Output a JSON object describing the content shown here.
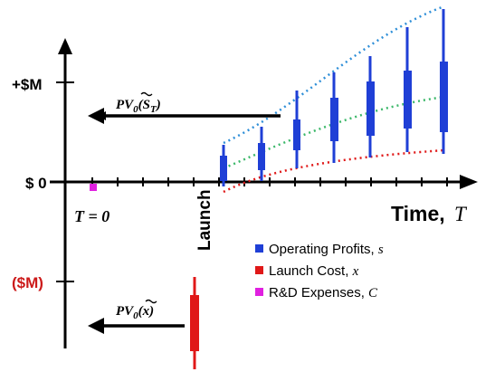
{
  "axes": {
    "y_top_label": "+$M",
    "y_zero_label": "$ 0",
    "y_neg_label": "($M)",
    "x_title": "Time,",
    "x_title_var": "T",
    "t0_label": "T = 0",
    "launch_label": "Launch"
  },
  "annotations": {
    "pv_s_main": "PV",
    "pv_s_sub": "0",
    "pv_s_arg": "(S",
    "pv_s_arg_sub": "T",
    "pv_s_close": ")",
    "pv_x_main": "PV",
    "pv_x_sub": "0",
    "pv_x_arg": "(x)"
  },
  "legend": [
    {
      "label": "Operating Profits, ",
      "var": "s",
      "color": "#1f3fd6"
    },
    {
      "label": "Launch Cost, ",
      "var": "x",
      "color": "#e01818"
    },
    {
      "label": "R&D Expenses, ",
      "var": "C",
      "color": "#e020e0"
    }
  ],
  "colors": {
    "operating": "#1f3fd6",
    "launch": "#e01818",
    "rnd": "#e020e0",
    "upper_band": "#2f8fd8",
    "median_band": "#3cb86a",
    "cost_band": "#e01818",
    "neg_label": "#cc1a1a"
  }
}
